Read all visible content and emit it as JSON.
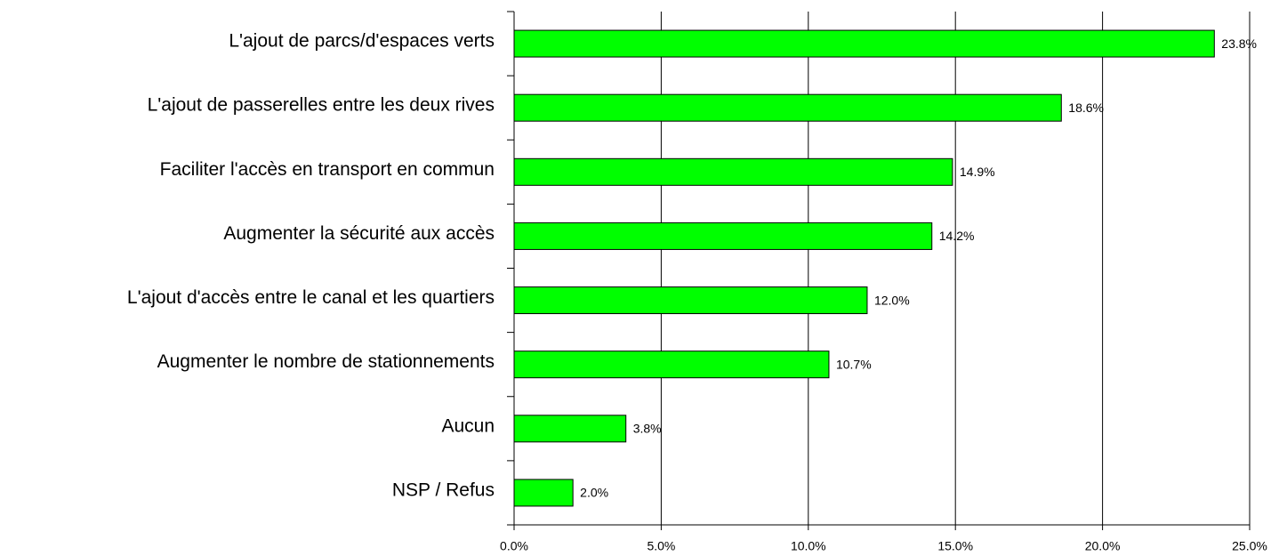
{
  "chart_data": {
    "type": "barh",
    "categories": [
      "L'ajout de parcs/d'espaces verts",
      "L'ajout de passerelles entre les deux rives",
      "Faciliter l'accès en transport en commun",
      "Augmenter la sécurité aux accès",
      "L'ajout d'accès entre le canal et les quartiers",
      "Augmenter le nombre de stationnements",
      "Aucun",
      "NSP / Refus"
    ],
    "values": [
      23.8,
      18.6,
      14.9,
      14.2,
      12.0,
      10.7,
      3.8,
      2.0
    ],
    "value_labels": [
      "23.8%",
      "18.6%",
      "14.9%",
      "14.2%",
      "12.0%",
      "10.7%",
      "3.8%",
      "2.0%"
    ],
    "color": "#00ff00",
    "xlim": [
      0,
      25
    ],
    "xticks": [
      {
        "value": 0,
        "label": "0.0%"
      },
      {
        "value": 5,
        "label": "5.0%"
      },
      {
        "value": 10,
        "label": "10.0%"
      },
      {
        "value": 15,
        "label": "15.0%"
      },
      {
        "value": 20,
        "label": "20.0%"
      },
      {
        "value": 25,
        "label": "25.0%"
      }
    ],
    "grid": true
  }
}
